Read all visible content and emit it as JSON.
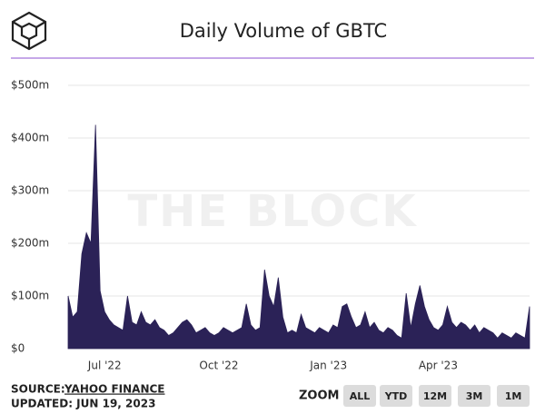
{
  "chart_data": {
    "type": "area",
    "title": "Daily Volume of GBTC",
    "watermark": "THE BLOCK",
    "color": "#2b2257",
    "grid": true,
    "categories": [
      null,
      null,
      null,
      null,
      null,
      null,
      null,
      null,
      "Jul '22",
      null,
      null,
      null,
      null,
      null,
      null,
      null,
      null,
      null,
      null,
      null,
      null,
      null,
      null,
      null,
      null,
      null,
      null,
      null,
      null,
      null,
      null,
      null,
      null,
      "Oct '22",
      null,
      null,
      null,
      null,
      null,
      null,
      null,
      null,
      null,
      null,
      null,
      null,
      null,
      null,
      null,
      null,
      null,
      null,
      null,
      null,
      null,
      null,
      null,
      "Jan '23",
      null,
      null,
      null,
      null,
      null,
      null,
      null,
      null,
      null,
      null,
      null,
      null,
      null,
      null,
      null,
      null,
      null,
      null,
      null,
      null,
      null,
      null,
      null,
      "Apr '23",
      null,
      null,
      null,
      null,
      null,
      null,
      null,
      null,
      null,
      null,
      null,
      null,
      null,
      null,
      null,
      null,
      null,
      null,
      null,
      null
    ],
    "values": [
      100,
      60,
      70,
      180,
      220,
      200,
      425,
      110,
      70,
      55,
      45,
      40,
      35,
      100,
      50,
      45,
      70,
      50,
      45,
      55,
      40,
      35,
      25,
      30,
      40,
      50,
      55,
      45,
      30,
      35,
      40,
      30,
      25,
      30,
      40,
      35,
      30,
      35,
      40,
      85,
      45,
      35,
      40,
      150,
      100,
      80,
      135,
      60,
      30,
      35,
      30,
      65,
      40,
      35,
      30,
      40,
      35,
      30,
      45,
      40,
      80,
      85,
      60,
      40,
      45,
      70,
      40,
      50,
      35,
      30,
      40,
      35,
      25,
      20,
      105,
      40,
      85,
      120,
      80,
      55,
      40,
      35,
      45,
      80,
      50,
      40,
      50,
      45,
      35,
      45,
      30,
      40,
      35,
      30,
      20,
      30,
      25,
      20,
      30,
      25,
      20,
      80
    ],
    "ylim": [
      0,
      500
    ],
    "yticks": [
      {
        "value": 0,
        "label": "$0"
      },
      {
        "value": 100,
        "label": "$100m"
      },
      {
        "value": 200,
        "label": "$200m"
      },
      {
        "value": 300,
        "label": "$300m"
      },
      {
        "value": 400,
        "label": "$400m"
      },
      {
        "value": 500,
        "label": "$500m"
      }
    ]
  },
  "footer": {
    "source_label": "SOURCE:",
    "source": "YAHOO FINANCE",
    "updated": "UPDATED: JUN 19, 2023",
    "zoom_label": "ZOOM",
    "zoom_buttons": [
      "ALL",
      "YTD",
      "12M",
      "3M",
      "1M"
    ]
  }
}
